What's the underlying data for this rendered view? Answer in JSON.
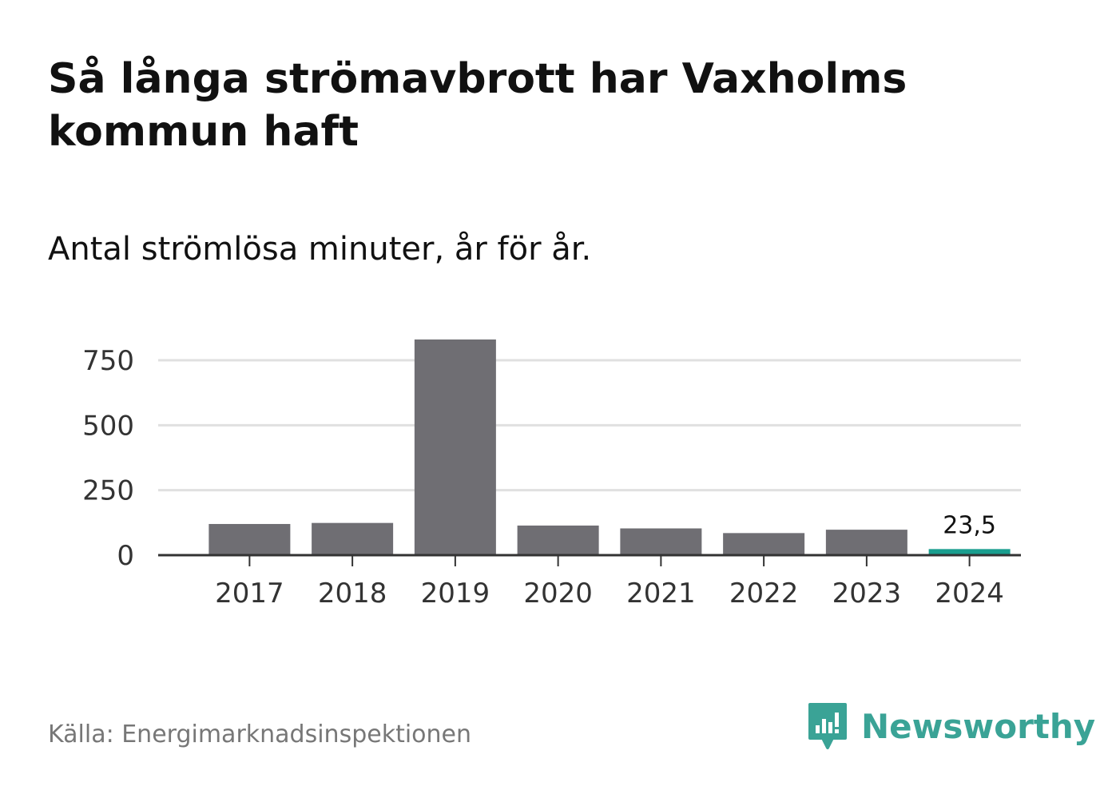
{
  "chart_data": {
    "type": "bar",
    "title": "Så långa strömavbrott har Vaxholms kommun haft",
    "subtitle": "Antal strömlösa minuter, år för år.",
    "categories": [
      "2017",
      "2018",
      "2019",
      "2020",
      "2021",
      "2022",
      "2023",
      "2024"
    ],
    "values": [
      120,
      124,
      830,
      114,
      103,
      85,
      98,
      23.5
    ],
    "highlight_index": 7,
    "highlight_label": "23,5",
    "ylim": [
      0,
      830
    ],
    "yticks": [
      0,
      250,
      500,
      750
    ],
    "xlabel": "",
    "ylabel": "",
    "grid": true,
    "bar_color": "#6f6e73",
    "highlight_color": "#1a9e8f"
  },
  "footer": {
    "source": "Källa: Energimarknadsinspektionen",
    "brand": "Newsworthy",
    "brand_color": "#3aa396",
    "brand_icon": "newsworthy-logo-icon"
  }
}
